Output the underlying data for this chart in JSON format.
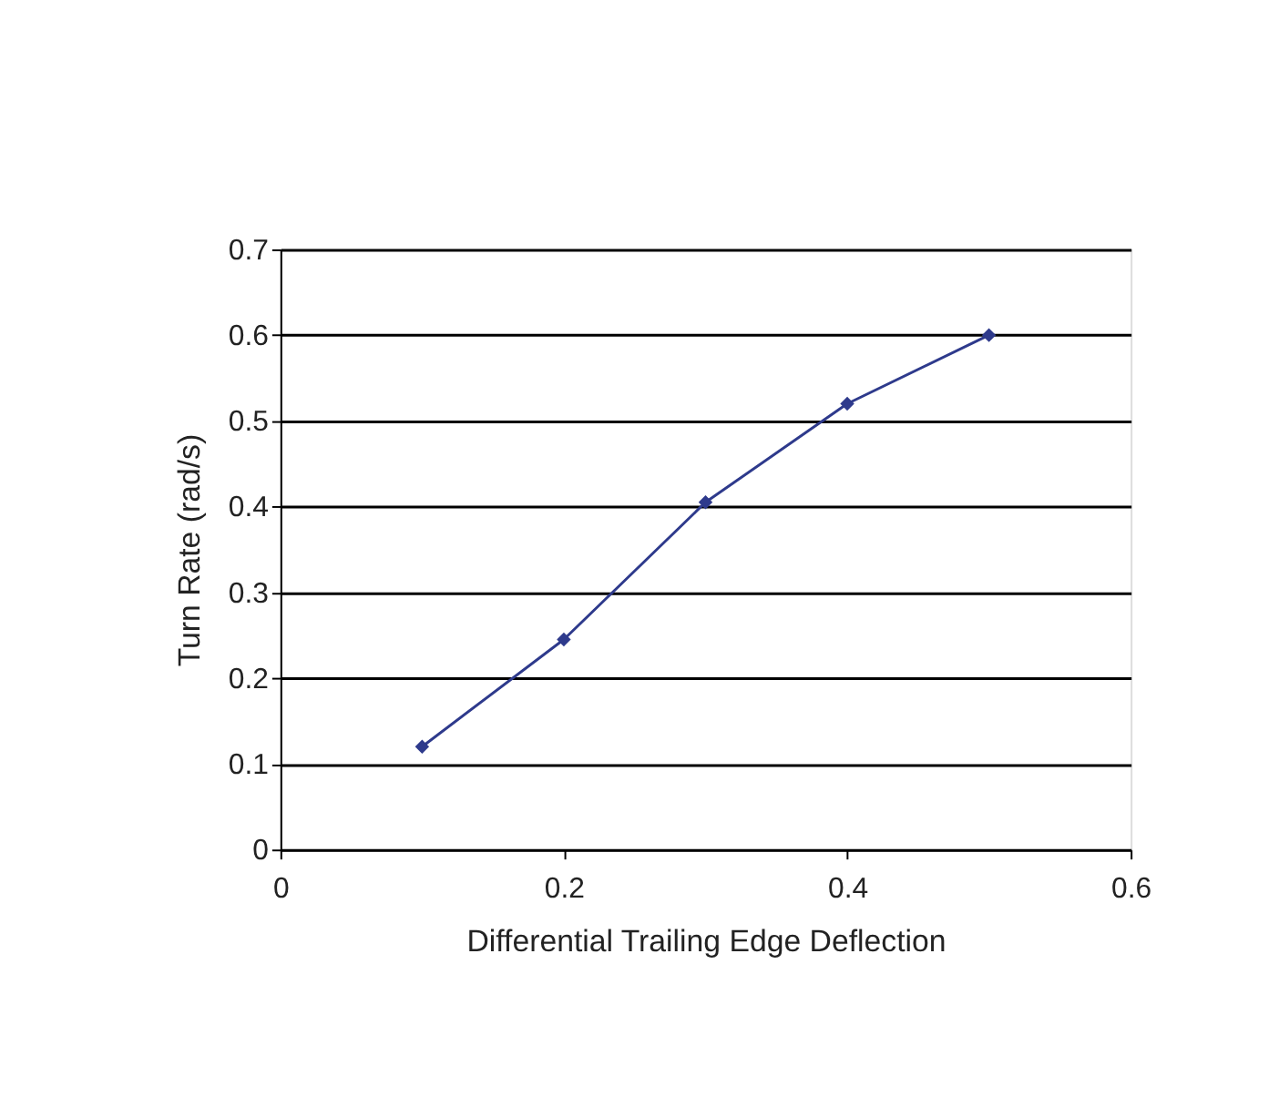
{
  "chart_data": {
    "type": "line",
    "xlabel": "Differential Trailing Edge Deflection",
    "ylabel": "Turn Rate (rad/s)",
    "x": [
      0.1,
      0.2,
      0.3,
      0.4,
      0.5
    ],
    "series": [
      {
        "color": "#2e3a8c",
        "values": [
          0.12,
          0.245,
          0.405,
          0.52,
          0.6
        ]
      }
    ],
    "xlim": [
      0,
      0.6
    ],
    "xticks": [
      0,
      0.2,
      0.4,
      0.6
    ],
    "ylim": [
      0,
      0.7
    ],
    "yticks": [
      0,
      0.1,
      0.2,
      0.3,
      0.4,
      0.5,
      0.6,
      0.7
    ],
    "grid": "y",
    "marker": "diamond",
    "line_style": "solid"
  }
}
